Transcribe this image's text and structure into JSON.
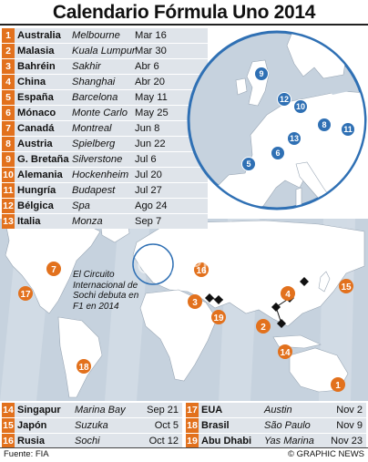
{
  "title": "Calendario Fórmula Uno 2014",
  "races": [
    {
      "num": "1",
      "country": "Australia",
      "circuit": "Melbourne",
      "date": "Mar 16"
    },
    {
      "num": "2",
      "country": "Malasia",
      "circuit": "Kuala Lumpur",
      "date": "Mar 30"
    },
    {
      "num": "3",
      "country": "Bahréin",
      "circuit": "Sakhir",
      "date": "Abr 6"
    },
    {
      "num": "4",
      "country": "China",
      "circuit": "Shanghai",
      "date": "Abr 20"
    },
    {
      "num": "5",
      "country": "España",
      "circuit": "Barcelona",
      "date": "May 11"
    },
    {
      "num": "6",
      "country": "Mónaco",
      "circuit": "Monte Carlo",
      "date": "May 25"
    },
    {
      "num": "7",
      "country": "Canadá",
      "circuit": "Montreal",
      "date": "Jun 8"
    },
    {
      "num": "8",
      "country": "Austria",
      "circuit": "Spielberg",
      "date": "Jun 22"
    },
    {
      "num": "9",
      "country": "G. Bretaña",
      "circuit": "Silverstone",
      "date": "Jul 6"
    },
    {
      "num": "10",
      "country": "Alemania",
      "circuit": "Hockenheim",
      "date": "Jul 20"
    },
    {
      "num": "11",
      "country": "Hungría",
      "circuit": "Budapest",
      "date": "Jul 27"
    },
    {
      "num": "12",
      "country": "Bélgica",
      "circuit": "Spa",
      "date": "Ago 24"
    },
    {
      "num": "13",
      "country": "Italia",
      "circuit": "Monza",
      "date": "Sep 7"
    },
    {
      "num": "14",
      "country": "Singapur",
      "circuit": "Marina Bay",
      "date": "Sep 21"
    },
    {
      "num": "15",
      "country": "Japón",
      "circuit": "Suzuka",
      "date": "Oct 5"
    },
    {
      "num": "16",
      "country": "Rusia",
      "circuit": "Sochi",
      "date": "Oct 12"
    },
    {
      "num": "17",
      "country": "EUA",
      "circuit": "Austin",
      "date": "Nov 2"
    },
    {
      "num": "18",
      "country": "Brasil",
      "circuit": "São Paulo",
      "date": "Nov 9"
    },
    {
      "num": "19",
      "country": "Abu Dhabi",
      "circuit": "Yas Marina",
      "date": "Nov 23"
    }
  ],
  "map_labels": {
    "europe": [
      "9",
      "12",
      "10",
      "8",
      "11",
      "6",
      "13",
      "5"
    ],
    "world": [
      "7",
      "17",
      "16",
      "3",
      "19",
      "4",
      "15",
      "2",
      "14",
      "18",
      "1"
    ]
  },
  "sochi_note": "El Circuito Internacional de Sochi debuta en F1 en 2014",
  "watermark": "GRAPHIC NEWS",
  "source": "Fuente: FIA",
  "credit": "© GRAPHIC NEWS",
  "colors": {
    "orange": "#e2711d",
    "blue": "#2f70b4",
    "ocean": "#c6d2de",
    "land": "#ffffff",
    "row": "#dfe4ea"
  }
}
